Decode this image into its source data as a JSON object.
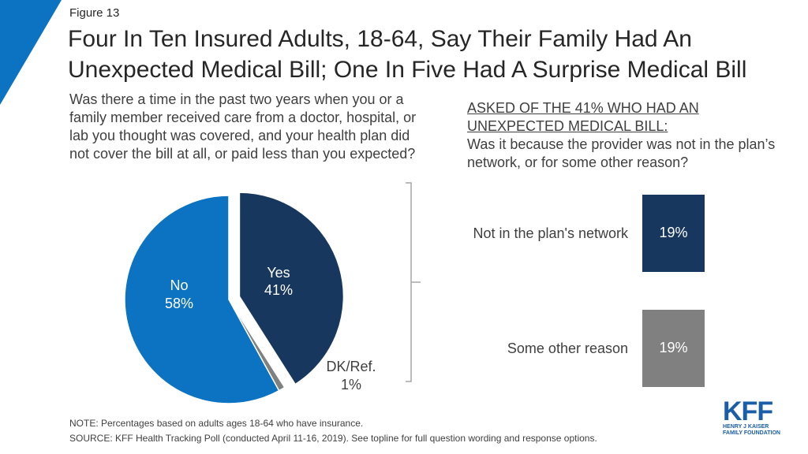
{
  "figure_label": "Figure 13",
  "title": "Four In Ten Insured Adults, 18-64, Say Their Family Had An Unexpected Medical Bill; One In Five Had A Surprise Medical Bill",
  "question": "Was there a time in the past two years when you or a family member received care from a doctor, hospital, or lab you thought was covered, and your health plan did not cover the bill at all, or paid less than you expected?",
  "sub_header": {
    "asked": "ASKED OF THE 41% WHO HAD AN UNEXPECTED MEDICAL BILL:",
    "question": "Was it because the provider was not in the plan’s network, or for some other reason?"
  },
  "chart_data": [
    {
      "type": "pie",
      "slices": [
        {
          "label": "Yes",
          "value": 41,
          "value_label": "41%",
          "color": "#17375e"
        },
        {
          "label": "DK/Ref.",
          "value": 1,
          "value_label": "1%",
          "color": "#808080"
        },
        {
          "label": "No",
          "value": 58,
          "value_label": "58%",
          "color": "#0c73c2"
        }
      ],
      "exploded": "Yes"
    },
    {
      "type": "bar",
      "orientation": "columns",
      "categories": [
        "Not in the plan's network",
        "Some other reason"
      ],
      "values": [
        19,
        19
      ],
      "value_labels": [
        "19%",
        "19%"
      ],
      "colors": [
        "#17375e",
        "#808080"
      ]
    }
  ],
  "notes": {
    "note": "NOTE: Percentages based on adults ages 18-64 who have insurance.",
    "source": "SOURCE: KFF Health Tracking Poll (conducted April 11-16, 2019). See topline for full question wording and response options."
  },
  "logo": {
    "mark": "KFF",
    "line1": "HENRY J KAISER",
    "line2": "FAMILY FOUNDATION",
    "color": "#1a5ea8"
  },
  "accent_color": "#0c73c2"
}
